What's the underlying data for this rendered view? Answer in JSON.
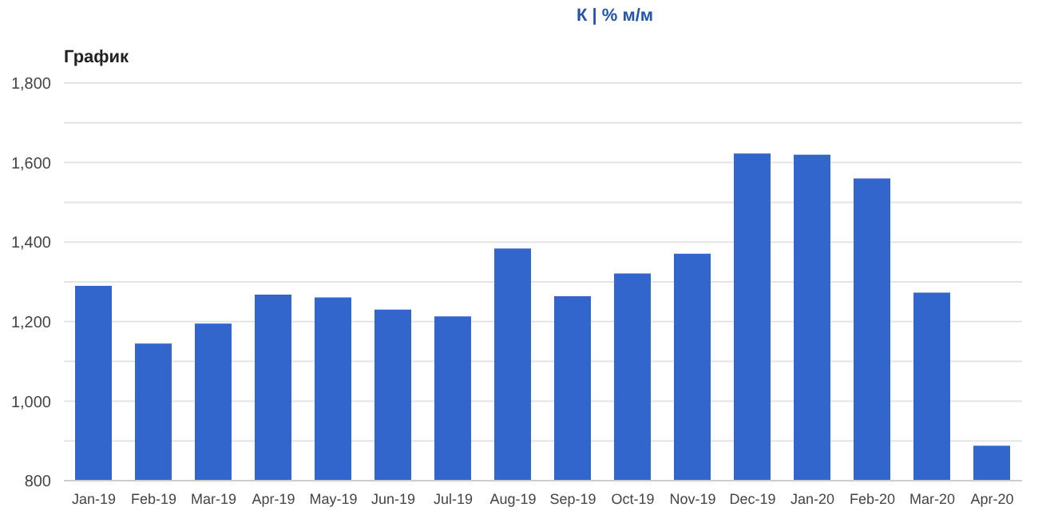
{
  "chart_data": {
    "type": "bar",
    "title": "График",
    "subtitle": "К | % м/м",
    "categories": [
      "Jan-19",
      "Feb-19",
      "Mar-19",
      "Apr-19",
      "May-19",
      "Jun-19",
      "Jul-19",
      "Aug-19",
      "Sep-19",
      "Oct-19",
      "Nov-19",
      "Dec-19",
      "Jan-20",
      "Feb-20",
      "Mar-20",
      "Apr-20"
    ],
    "values": [
      1290,
      1145,
      1195,
      1268,
      1261,
      1230,
      1213,
      1384,
      1264,
      1321,
      1371,
      1623,
      1620,
      1560,
      1273,
      888
    ],
    "color": "#3366cc",
    "ylim": [
      800,
      1800
    ],
    "yticks": [
      800,
      {
        "value": 900,
        "label": null
      },
      {
        "value": 1000,
        "label": "1,000"
      },
      {
        "value": 1100,
        "label": null
      },
      {
        "value": 1200,
        "label": "1,200"
      },
      {
        "value": 1300,
        "label": null
      },
      {
        "value": 1400,
        "label": "1,400"
      },
      {
        "value": 1500,
        "label": null
      },
      {
        "value": 1600,
        "label": "1,600"
      },
      {
        "value": 1700,
        "label": null
      },
      {
        "value": 1800,
        "label": "1,800"
      }
    ],
    "grid": "y"
  }
}
